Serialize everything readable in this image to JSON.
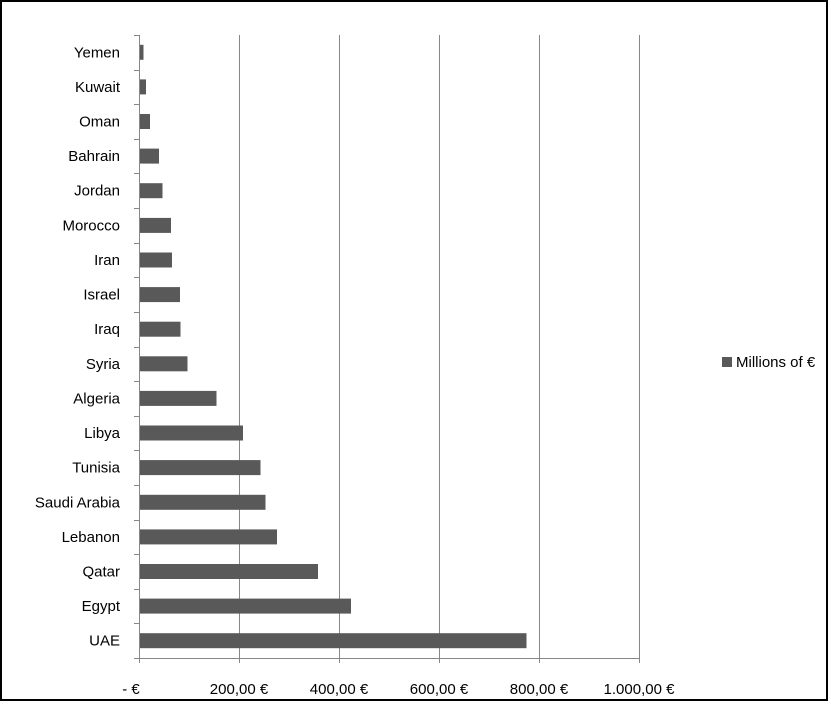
{
  "chart_data": {
    "type": "bar",
    "orientation": "horizontal",
    "categories": [
      "UAE",
      "Egypt",
      "Qatar",
      "Lebanon",
      "Saudi Arabia",
      "Tunisia",
      "Libya",
      "Algeria",
      "Syria",
      "Iraq",
      "Israel",
      "Iran",
      "Morocco",
      "Jordan",
      "Bahrain",
      "Oman",
      "Kuwait",
      "Yemen"
    ],
    "series": [
      {
        "name": "Millions of €",
        "values": [
          773,
          422,
          356,
          274,
          251,
          241,
          206,
          153,
          95,
          81,
          80,
          64,
          62,
          45,
          38,
          20,
          12,
          7
        ]
      }
    ],
    "xlim": [
      0,
      1000
    ],
    "xticks": [
      0,
      200,
      400,
      600,
      800,
      1000
    ],
    "xtick_labels": [
      "-  €",
      "200,00 €",
      "400,00 €",
      "600,00 €",
      "800,00 €",
      "1.000,00 €"
    ],
    "grid": "vertical major gridlines",
    "legend_position": "right",
    "colors": {
      "bar": "#595959",
      "grid": "#878787",
      "axis": "#878787",
      "text": "#000000"
    }
  }
}
